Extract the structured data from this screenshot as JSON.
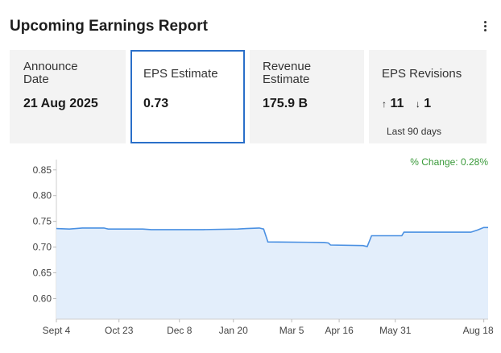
{
  "header": {
    "title": "Upcoming Earnings Report",
    "menu_icon": "kebab-menu-icon"
  },
  "cards": {
    "announce": {
      "label_line1": "Announce",
      "label_line2": "Date",
      "value": "21 Aug 2025"
    },
    "eps": {
      "label": "EPS Estimate",
      "value": "0.73"
    },
    "revenue": {
      "label_line1": "Revenue",
      "label_line2": "Estimate",
      "value": "175.9 B"
    },
    "revisions": {
      "label": "EPS Revisions",
      "up_arrow": "↑",
      "up_count": "11",
      "down_arrow": "↓",
      "down_count": "1",
      "period": "Last 90 days"
    }
  },
  "chart_data": {
    "type": "area",
    "title": "",
    "annotation": "% Change: 0.28%",
    "ylim": [
      0.56,
      0.87
    ],
    "y_ticks": [
      "0.85",
      "0.80",
      "0.75",
      "0.70",
      "0.65",
      "0.60"
    ],
    "y_tick_values": [
      0.85,
      0.8,
      0.75,
      0.7,
      0.65,
      0.6
    ],
    "x_ticks": [
      "Sept 4",
      "Oct 23",
      "Dec 8",
      "Jan 20",
      "Mar 5",
      "Apr 16",
      "May 31",
      "Aug 18"
    ],
    "x_tick_positions": [
      0,
      0.145,
      0.285,
      0.41,
      0.545,
      0.655,
      0.785,
      0.99
    ],
    "series": [
      {
        "name": "EPS Estimate",
        "points": [
          [
            0.0,
            0.736
          ],
          [
            0.03,
            0.735
          ],
          [
            0.06,
            0.737
          ],
          [
            0.11,
            0.737
          ],
          [
            0.12,
            0.735
          ],
          [
            0.2,
            0.735
          ],
          [
            0.22,
            0.734
          ],
          [
            0.34,
            0.734
          ],
          [
            0.42,
            0.735
          ],
          [
            0.44,
            0.736
          ],
          [
            0.47,
            0.737
          ],
          [
            0.48,
            0.735
          ],
          [
            0.49,
            0.71
          ],
          [
            0.62,
            0.709
          ],
          [
            0.63,
            0.708
          ],
          [
            0.635,
            0.704
          ],
          [
            0.71,
            0.703
          ],
          [
            0.72,
            0.701
          ],
          [
            0.73,
            0.722
          ],
          [
            0.8,
            0.722
          ],
          [
            0.805,
            0.729
          ],
          [
            0.96,
            0.729
          ],
          [
            0.975,
            0.733
          ],
          [
            0.99,
            0.738
          ],
          [
            1.0,
            0.738
          ]
        ]
      }
    ],
    "colors": {
      "line": "#4a90e2",
      "fill": "#e3eefb",
      "annotation": "#3a9a3a"
    }
  }
}
